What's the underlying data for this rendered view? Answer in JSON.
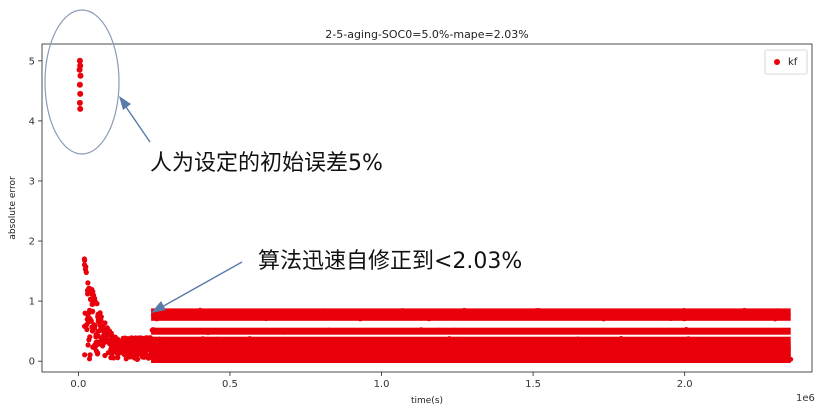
{
  "chart_data": {
    "type": "scatter",
    "title": "2-5-aging-SOC0=5.0%-mape=2.03%",
    "xlabel": "time(s)",
    "ylabel": "absolute error",
    "x_offset_label": "1e6",
    "x_ticks": [
      "0.0",
      "0.5",
      "1.0",
      "1.5",
      "2.0"
    ],
    "y_ticks": [
      "0",
      "1",
      "2",
      "3",
      "4",
      "5"
    ],
    "xlim": [
      -0.12,
      2.42
    ],
    "ylim": [
      -0.18,
      5.28
    ],
    "series": [
      {
        "name": "kf",
        "color": "#e8000b",
        "initial_points": [
          {
            "x": 0.005,
            "y": 5.0
          },
          {
            "x": 0.006,
            "y": 4.92
          },
          {
            "x": 0.004,
            "y": 4.85
          },
          {
            "x": 0.007,
            "y": 4.75
          },
          {
            "x": 0.005,
            "y": 4.6
          },
          {
            "x": 0.006,
            "y": 4.45
          },
          {
            "x": 0.005,
            "y": 4.3
          },
          {
            "x": 0.006,
            "y": 4.2
          }
        ],
        "transient": {
          "x_start": 0.02,
          "x_end": 0.24,
          "y_peak": 1.78,
          "y_floor": 0.0
        },
        "steady_bands": {
          "x_start": 0.24,
          "x_end": 2.35,
          "levels": [
            0.82,
            0.73,
            0.5,
            0.35,
            0.25,
            0.15,
            0.05
          ]
        }
      }
    ],
    "legend": {
      "entries": [
        "kf"
      ],
      "position": "top-right"
    },
    "grid": false
  },
  "annotations": [
    {
      "text": "人为设定的初始误差5%"
    },
    {
      "text": "算法迅速自修正到<2.03%"
    }
  ]
}
